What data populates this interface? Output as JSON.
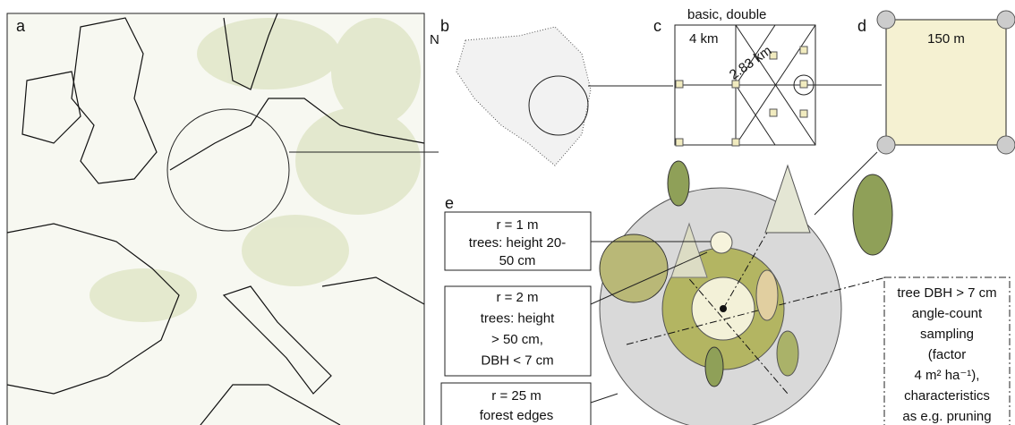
{
  "panels": {
    "a": "a",
    "b": "b",
    "c": "c",
    "d": "d",
    "e": "e"
  },
  "map": {
    "north": "N"
  },
  "grid": {
    "title": "basic, double",
    "spacing": "4 km",
    "diagonal": "2.83 km"
  },
  "plot": {
    "side": "150 m"
  },
  "plots": [
    {
      "lines": [
        "r = 1 m",
        "trees: height 20-",
        "50 cm"
      ]
    },
    {
      "lines": [
        "r = 2 m",
        "trees: height",
        "> 50 cm,",
        "DBH < 7 cm"
      ]
    },
    {
      "lines": [
        "r = 25 m",
        "forest edges"
      ]
    },
    {
      "lines": [
        "tree DBH > 7 cm",
        "angle-count",
        "sampling",
        "(factor",
        "4 m² ha⁻¹),",
        "characteristics",
        "as e.g. pruning"
      ]
    }
  ]
}
